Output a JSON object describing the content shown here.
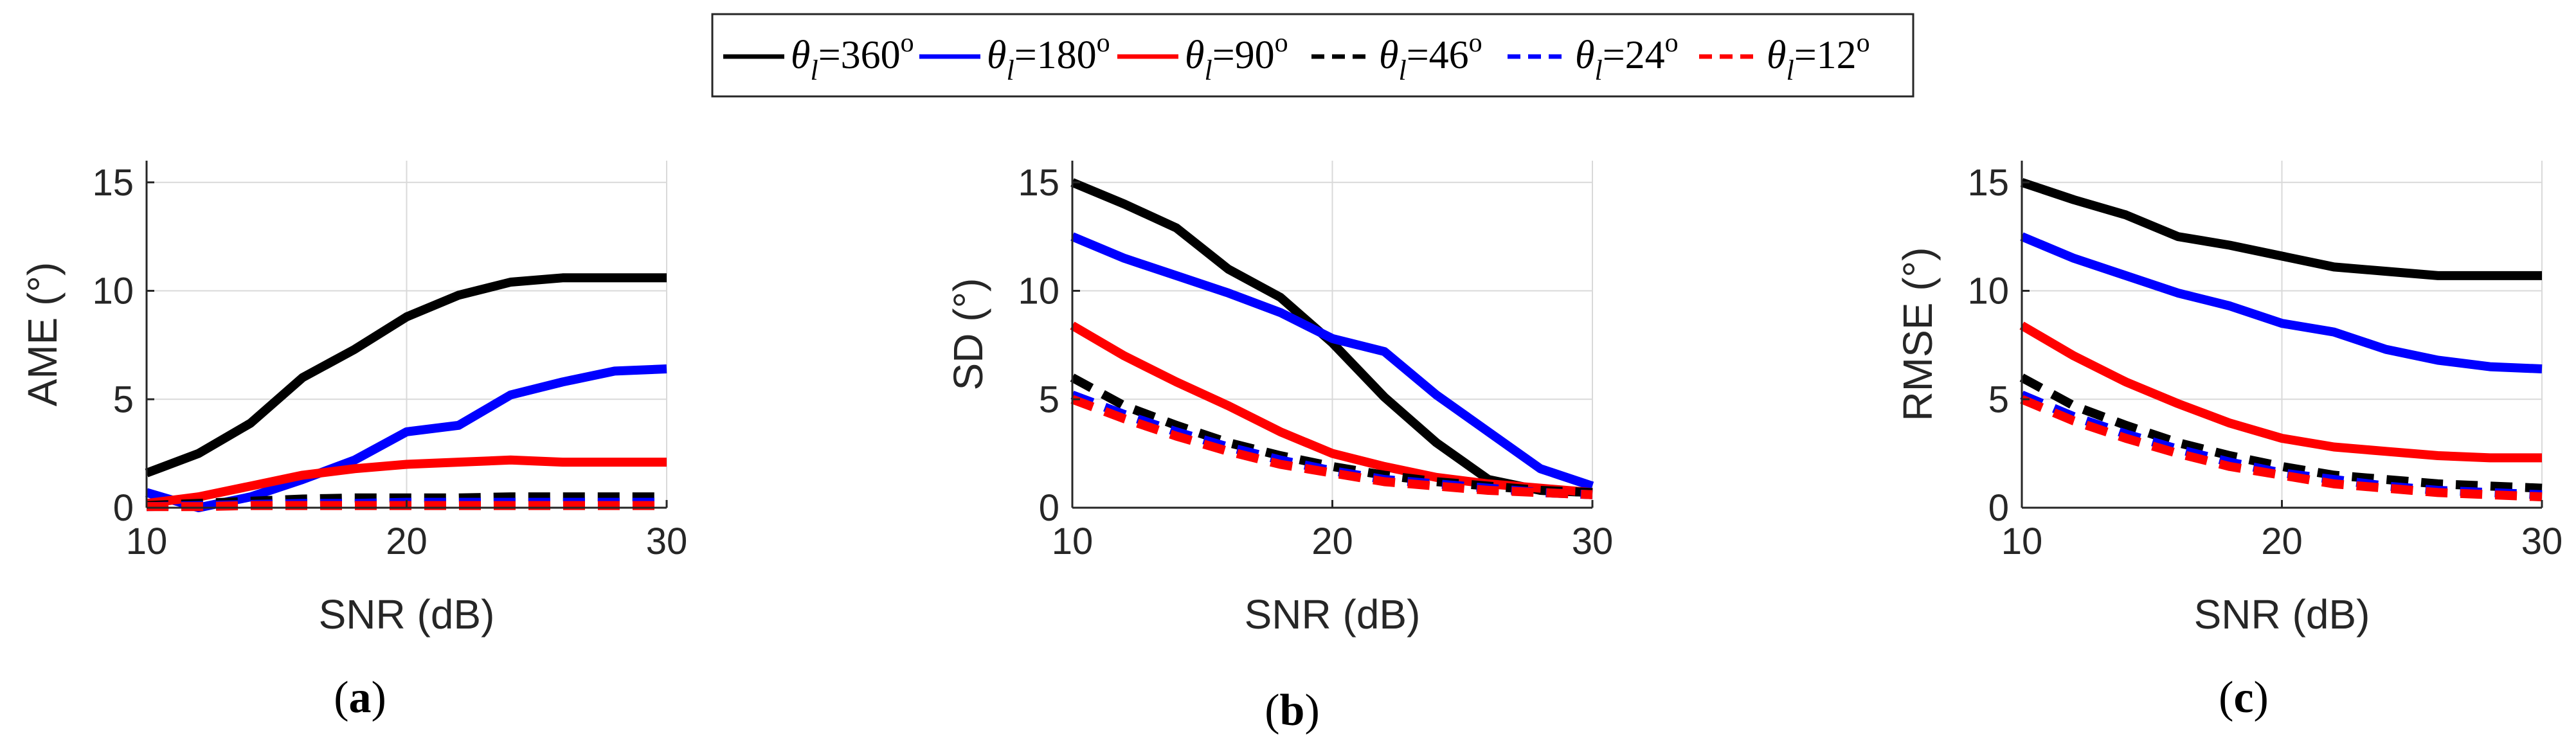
{
  "legend": {
    "entries": [
      {
        "symbol": "θ",
        "sub": "l",
        "value": "=360",
        "sup": "o",
        "color": "#000000",
        "dash": false
      },
      {
        "symbol": "θ",
        "sub": "l",
        "value": "=180",
        "sup": "o",
        "color": "#0000ff",
        "dash": false
      },
      {
        "symbol": "θ",
        "sub": "l",
        "value": "=90",
        "sup": "o",
        "color": "#ff0000",
        "dash": false
      },
      {
        "symbol": "θ",
        "sub": "l",
        "value": "=46",
        "sup": "o",
        "color": "#000000",
        "dash": true
      },
      {
        "symbol": "θ",
        "sub": "l",
        "value": "=24",
        "sup": "o",
        "color": "#0000ff",
        "dash": true
      },
      {
        "symbol": "θ",
        "sub": "l",
        "value": "=12",
        "sup": "o",
        "color": "#ff0000",
        "dash": true
      }
    ]
  },
  "captions": [
    {
      "open": "(",
      "letter": "a",
      "close": ")"
    },
    {
      "open": "(",
      "letter": "b",
      "close": ")"
    },
    {
      "open": "(",
      "letter": "c",
      "close": ")"
    }
  ],
  "chart_data": [
    {
      "type": "line",
      "xlabel": "SNR (dB)",
      "ylabel": "AME (°)",
      "xlim": [
        10,
        30
      ],
      "ylim": [
        0,
        16
      ],
      "xticks": [
        10,
        20,
        30
      ],
      "yticks": [
        0,
        5,
        10,
        15
      ],
      "grid": true,
      "x": [
        10,
        12,
        14,
        16,
        18,
        20,
        22,
        24,
        26,
        28,
        30
      ],
      "series": [
        {
          "name": "θl=360°",
          "color": "#000000",
          "dash": false,
          "values": [
            1.6,
            2.5,
            3.9,
            6.0,
            7.3,
            8.8,
            9.8,
            10.4,
            10.6,
            10.6,
            10.6
          ]
        },
        {
          "name": "θl=180°",
          "color": "#0000ff",
          "dash": false,
          "values": [
            0.7,
            0.0,
            0.5,
            1.3,
            2.2,
            3.5,
            3.8,
            5.2,
            5.8,
            6.3,
            6.4
          ]
        },
        {
          "name": "θl=90°",
          "color": "#ff0000",
          "dash": false,
          "values": [
            0.2,
            0.5,
            1.0,
            1.5,
            1.8,
            2.0,
            2.1,
            2.2,
            2.1,
            2.1,
            2.1
          ]
        },
        {
          "name": "θl=46°",
          "color": "#000000",
          "dash": true,
          "values": [
            0.1,
            0.2,
            0.3,
            0.4,
            0.45,
            0.45,
            0.45,
            0.5,
            0.5,
            0.5,
            0.5
          ]
        },
        {
          "name": "θl=24°",
          "color": "#0000ff",
          "dash": true,
          "values": [
            0.05,
            0.1,
            0.15,
            0.2,
            0.2,
            0.25,
            0.25,
            0.25,
            0.25,
            0.25,
            0.25
          ]
        },
        {
          "name": "θl=12°",
          "color": "#ff0000",
          "dash": true,
          "values": [
            0.05,
            0.05,
            0.1,
            0.1,
            0.1,
            0.1,
            0.1,
            0.1,
            0.1,
            0.1,
            0.1
          ]
        }
      ]
    },
    {
      "type": "line",
      "xlabel": "SNR (dB)",
      "ylabel": "SD (°)",
      "xlim": [
        10,
        30
      ],
      "ylim": [
        0,
        16
      ],
      "xticks": [
        10,
        20,
        30
      ],
      "yticks": [
        0,
        5,
        10,
        15
      ],
      "grid": true,
      "x": [
        10,
        12,
        14,
        16,
        18,
        20,
        22,
        24,
        26,
        28,
        30
      ],
      "series": [
        {
          "name": "θl=360°",
          "color": "#000000",
          "dash": false,
          "values": [
            15.0,
            14.0,
            12.9,
            11.0,
            9.7,
            7.6,
            5.1,
            3.0,
            1.3,
            0.8,
            0.7
          ]
        },
        {
          "name": "θl=180°",
          "color": "#0000ff",
          "dash": false,
          "values": [
            12.5,
            11.5,
            10.7,
            9.9,
            9.0,
            7.8,
            7.2,
            5.2,
            3.5,
            1.8,
            1.0
          ]
        },
        {
          "name": "θl=90°",
          "color": "#ff0000",
          "dash": false,
          "values": [
            8.4,
            7.0,
            5.8,
            4.7,
            3.5,
            2.5,
            1.9,
            1.4,
            1.1,
            0.9,
            0.7
          ]
        },
        {
          "name": "θl=46°",
          "color": "#000000",
          "dash": true,
          "values": [
            6.0,
            4.7,
            3.8,
            3.0,
            2.4,
            1.9,
            1.5,
            1.2,
            1.0,
            0.8,
            0.7
          ]
        },
        {
          "name": "θl=24°",
          "color": "#0000ff",
          "dash": true,
          "values": [
            5.2,
            4.3,
            3.5,
            2.8,
            2.2,
            1.7,
            1.3,
            1.1,
            0.9,
            0.7,
            0.6
          ]
        },
        {
          "name": "θl=12°",
          "color": "#ff0000",
          "dash": true,
          "values": [
            5.0,
            4.1,
            3.3,
            2.6,
            2.0,
            1.6,
            1.2,
            1.0,
            0.8,
            0.7,
            0.6
          ]
        }
      ]
    },
    {
      "type": "line",
      "xlabel": "SNR (dB)",
      "ylabel": "RMSE (°)",
      "xlim": [
        10,
        30
      ],
      "ylim": [
        0,
        16
      ],
      "xticks": [
        10,
        20,
        30
      ],
      "yticks": [
        0,
        5,
        10,
        15
      ],
      "grid": true,
      "x": [
        10,
        12,
        14,
        16,
        18,
        20,
        22,
        24,
        26,
        28,
        30
      ],
      "series": [
        {
          "name": "θl=360°",
          "color": "#000000",
          "dash": false,
          "values": [
            15.0,
            14.2,
            13.5,
            12.5,
            12.1,
            11.6,
            11.1,
            10.9,
            10.7,
            10.7,
            10.7
          ]
        },
        {
          "name": "θl=180°",
          "color": "#0000ff",
          "dash": false,
          "values": [
            12.5,
            11.5,
            10.7,
            9.9,
            9.3,
            8.5,
            8.1,
            7.3,
            6.8,
            6.5,
            6.4
          ]
        },
        {
          "name": "θl=90°",
          "color": "#ff0000",
          "dash": false,
          "values": [
            8.4,
            7.0,
            5.8,
            4.8,
            3.9,
            3.2,
            2.8,
            2.6,
            2.4,
            2.3,
            2.3
          ]
        },
        {
          "name": "θl=46°",
          "color": "#000000",
          "dash": true,
          "values": [
            6.0,
            4.7,
            3.8,
            3.0,
            2.4,
            1.9,
            1.5,
            1.3,
            1.1,
            1.0,
            0.9
          ]
        },
        {
          "name": "θl=24°",
          "color": "#0000ff",
          "dash": true,
          "values": [
            5.2,
            4.2,
            3.4,
            2.7,
            2.1,
            1.6,
            1.3,
            1.0,
            0.8,
            0.7,
            0.6
          ]
        },
        {
          "name": "θl=12°",
          "color": "#ff0000",
          "dash": true,
          "values": [
            5.0,
            4.0,
            3.2,
            2.5,
            1.9,
            1.5,
            1.1,
            0.9,
            0.7,
            0.6,
            0.5
          ]
        }
      ]
    }
  ]
}
